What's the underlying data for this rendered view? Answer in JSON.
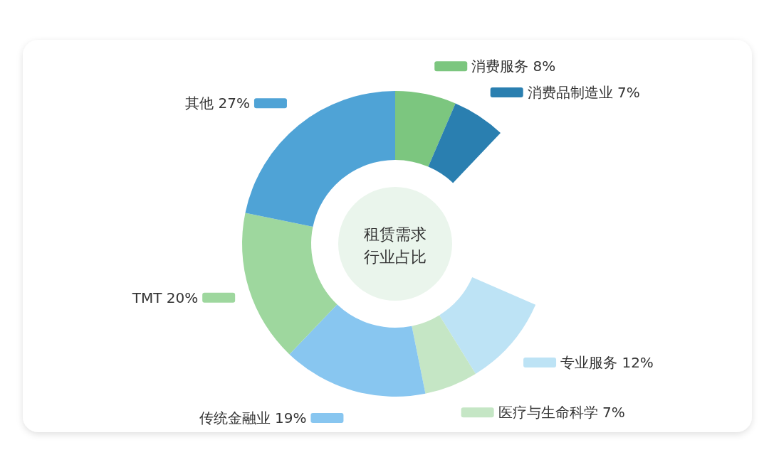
{
  "chart_data": {
    "type": "donut",
    "title": "租赁需求行业占比",
    "categories": [
      "消费服务",
      "消费品制造业",
      "专业服务",
      "医疗与生命科学",
      "传统金融业",
      "TMT",
      "其他"
    ],
    "values": [
      8,
      7,
      12,
      7,
      19,
      20,
      27
    ],
    "value_labels": [
      "8%",
      "7%",
      "12%",
      "7%",
      "19%",
      "20%",
      "27%"
    ],
    "colors": [
      "#7cc67f",
      "#2a7fb0",
      "#bde3f5",
      "#c5e6c5",
      "#88c6f0",
      "#9ed79e",
      "#4fa3d6"
    ],
    "legend": "right"
  }
}
